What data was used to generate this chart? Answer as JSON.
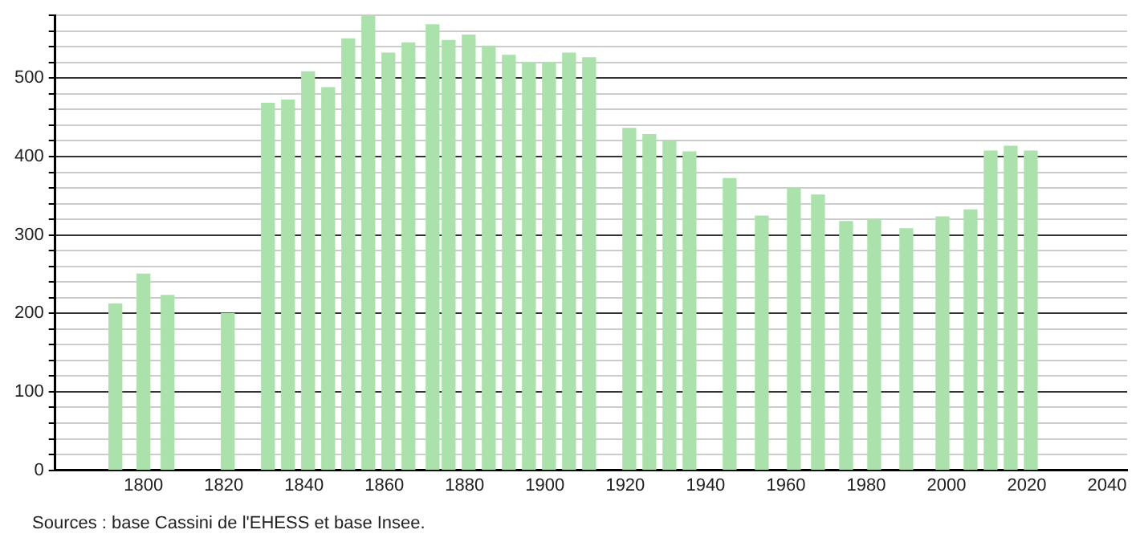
{
  "chart_data": {
    "type": "bar",
    "color": "#abe2ab",
    "x": [
      1793,
      1800,
      1806,
      1821,
      1831,
      1836,
      1841,
      1846,
      1851,
      1856,
      1861,
      1866,
      1872,
      1876,
      1881,
      1886,
      1891,
      1896,
      1901,
      1906,
      1911,
      1921,
      1926,
      1931,
      1936,
      1946,
      1954,
      1962,
      1968,
      1975,
      1982,
      1990,
      1999,
      2006,
      2011,
      2016,
      2021
    ],
    "values": [
      212,
      250,
      223,
      200,
      468,
      472,
      508,
      488,
      550,
      579,
      532,
      545,
      568,
      548,
      555,
      541,
      529,
      519,
      519,
      532,
      526,
      436,
      428,
      420,
      406,
      372,
      324,
      360,
      351,
      317,
      320,
      308,
      323,
      332,
      407,
      413,
      407
    ],
    "xlim": [
      1778,
      2045
    ],
    "xticks": [
      1800,
      1820,
      1840,
      1860,
      1880,
      1900,
      1920,
      1940,
      1960,
      1980,
      2000,
      2020,
      2040
    ],
    "ylim": [
      0,
      580
    ],
    "yticks": [
      0,
      {
        "value": 20,
        "label": null
      },
      {
        "value": 40,
        "label": null
      },
      {
        "value": 60,
        "label": null
      },
      {
        "value": 80,
        "label": null
      },
      100,
      {
        "value": 120,
        "label": null
      },
      {
        "value": 140,
        "label": null
      },
      {
        "value": 160,
        "label": null
      },
      {
        "value": 180,
        "label": null
      },
      200,
      {
        "value": 220,
        "label": null
      },
      {
        "value": 240,
        "label": null
      },
      {
        "value": 260,
        "label": null
      },
      {
        "value": 280,
        "label": null
      },
      300,
      {
        "value": 320,
        "label": null
      },
      {
        "value": 340,
        "label": null
      },
      {
        "value": 360,
        "label": null
      },
      {
        "value": 380,
        "label": null
      },
      400,
      {
        "value": 420,
        "label": null
      },
      {
        "value": 440,
        "label": null
      },
      {
        "value": 460,
        "label": null
      },
      {
        "value": 480,
        "label": null
      },
      500,
      {
        "value": 520,
        "label": null
      },
      {
        "value": 540,
        "label": null
      },
      {
        "value": 560,
        "label": null
      },
      {
        "value": 580,
        "label": null
      }
    ],
    "grid": "y",
    "annotations": [
      "Sources : base Cassini de l'EHESS et base Insee."
    ]
  }
}
